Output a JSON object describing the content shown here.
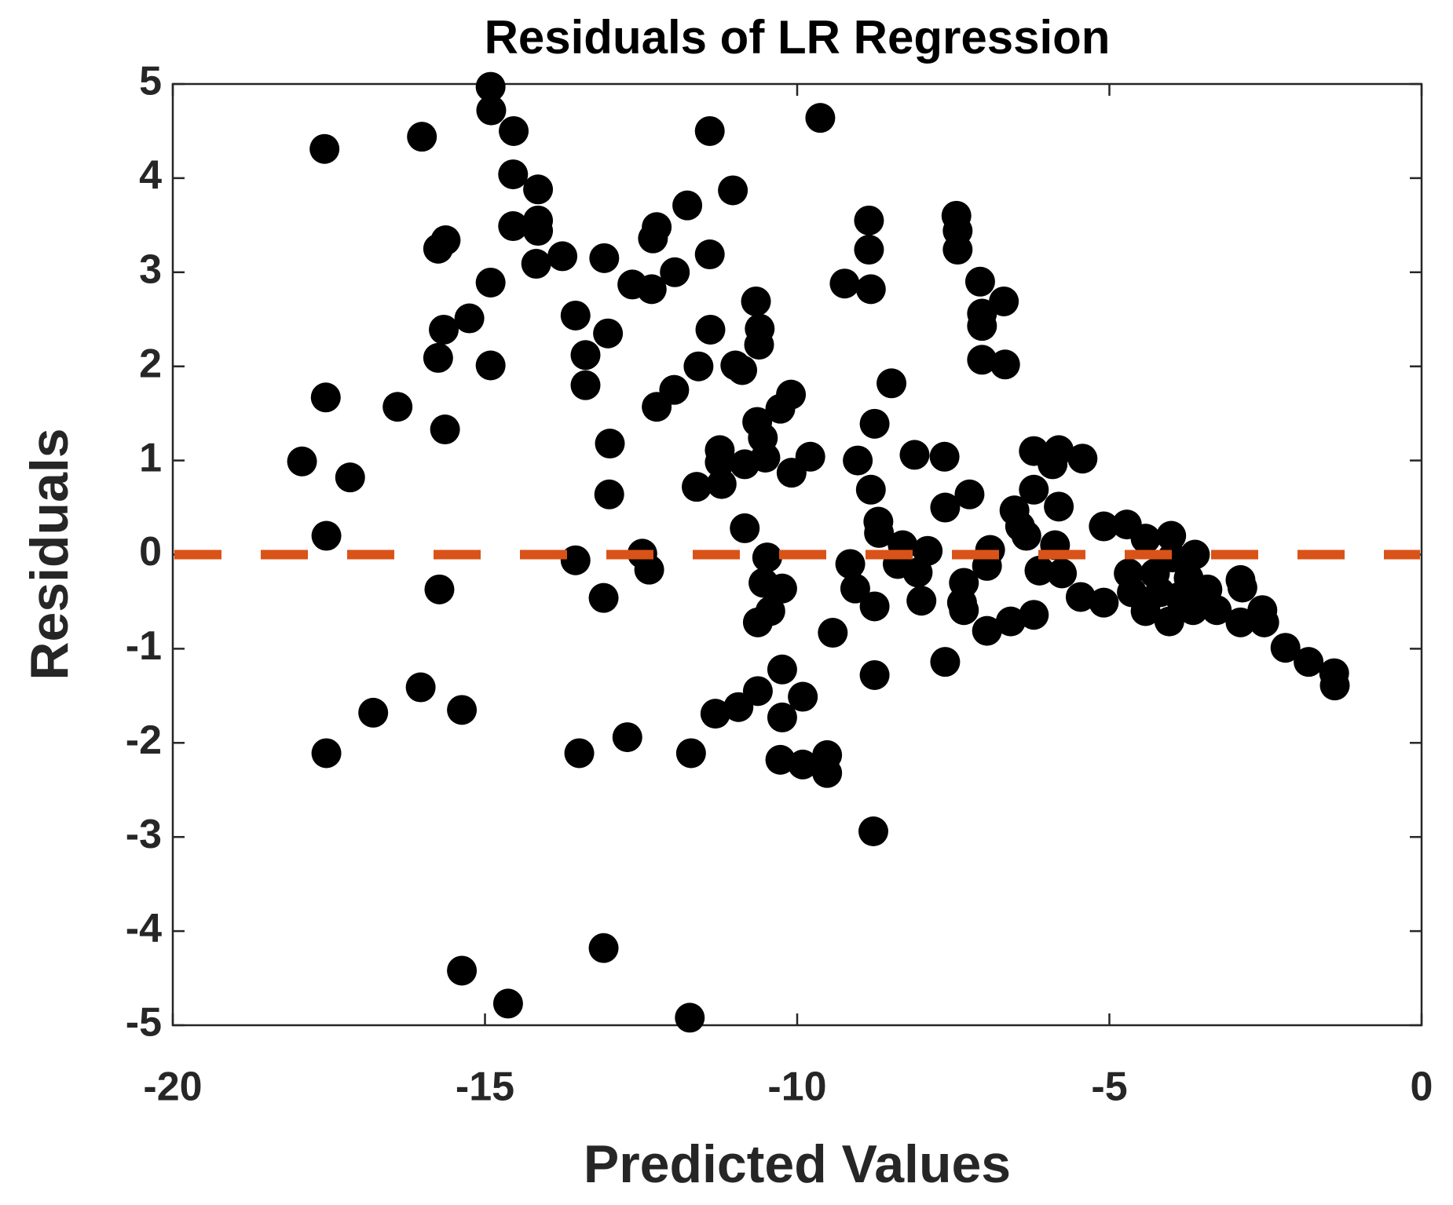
{
  "chart_data": {
    "type": "scatter",
    "title": "Residuals of LR Regression",
    "x_label": "Predicted Values",
    "y_label": "Residuals",
    "color": "#000000",
    "x": [
      -17.93,
      -17.57,
      -17.55,
      -17.54,
      -17.54,
      -17.16,
      -16.79,
      -16.4,
      -16.01,
      -16.03,
      -15.75,
      -15.63,
      -15.66,
      -15.75,
      -15.64,
      -15.73,
      -15.25,
      -15.37,
      -15.37,
      -14.91,
      -14.9,
      -14.91,
      -14.91,
      -14.54,
      -14.55,
      -14.55,
      -14.63,
      -14.15,
      -14.15,
      -14.15,
      -14.18,
      -13.76,
      -13.55,
      -13.55,
      -13.49,
      -13.39,
      -13.39,
      -13.09,
      -13.03,
      -13.0,
      -13.01,
      -13.1,
      -13.1,
      -12.72,
      -12.64,
      -12.48,
      -12.37,
      -12.33,
      -12.31,
      -12.25,
      -12.25,
      -11.97,
      -11.96,
      -11.76,
      -11.61,
      -11.7,
      -11.72,
      -11.58,
      -11.4,
      -11.4,
      -11.39,
      -11.31,
      -11.24,
      -11.24,
      -11.21,
      -11.03,
      -10.99,
      -10.94,
      -10.88,
      -10.84,
      -10.84,
      -10.66,
      -10.6,
      -10.61,
      -10.64,
      -10.63,
      -10.63,
      -10.55,
      -10.51,
      -10.48,
      -10.54,
      -10.43,
      -10.24,
      -10.24,
      -10.24,
      -10.27,
      -10.27,
      -10.1,
      -10.09,
      -9.91,
      -9.91,
      -9.79,
      -9.63,
      -9.52,
      -9.52,
      -9.43,
      -9.24,
      -9.15,
      -9.07,
      -9.03,
      -8.85,
      -8.85,
      -8.82,
      -8.82,
      -8.78,
      -8.76,
      -8.76,
      -8.76,
      -8.7,
      -8.69,
      -8.49,
      -8.39,
      -8.31,
      -8.12,
      -8.07,
      -8.01,
      -7.91,
      -7.64,
      -7.63,
      -7.63,
      -7.45,
      -7.43,
      -7.43,
      -7.33,
      -7.36,
      -7.33,
      -7.24,
      -7.07,
      -7.04,
      -7.04,
      -7.04,
      -6.96,
      -6.91,
      -6.96,
      -6.69,
      -6.67,
      -6.58,
      -6.52,
      -6.43,
      -6.33,
      -6.21,
      -6.21,
      -6.21,
      -6.12,
      -5.91,
      -5.87,
      -5.81,
      -5.81,
      -5.76,
      -5.46,
      -5.43,
      -5.09,
      -5.09,
      -4.72,
      -4.69,
      -4.64,
      -4.42,
      -4.42,
      -4.27,
      -4.19,
      -4.01,
      -4.04,
      -3.99,
      -3.88,
      -3.73,
      -3.63,
      -3.66,
      -3.43,
      -3.28,
      -2.9,
      -2.87,
      -2.9,
      -2.55,
      -2.52,
      -2.18,
      -1.81,
      -1.4,
      -1.39
    ],
    "y": [
      0.99,
      4.31,
      1.67,
      0.2,
      -2.11,
      0.82,
      -1.68,
      1.57,
      4.44,
      -1.41,
      3.25,
      3.34,
      2.39,
      2.09,
      1.33,
      -0.37,
      2.51,
      -1.65,
      -4.42,
      4.97,
      4.72,
      2.89,
      2.01,
      4.5,
      4.04,
      3.49,
      -4.77,
      3.88,
      3.55,
      3.44,
      3.09,
      3.17,
      2.54,
      -0.06,
      -2.11,
      2.12,
      1.8,
      3.15,
      2.35,
      1.18,
      0.64,
      -0.46,
      -4.18,
      -1.94,
      2.87,
      0.01,
      -0.16,
      2.82,
      3.36,
      3.48,
      1.57,
      1.75,
      3.0,
      3.71,
      0.72,
      -2.11,
      -4.92,
      2.0,
      4.5,
      3.19,
      2.39,
      -1.69,
      1.11,
      0.98,
      0.75,
      3.87,
      2.01,
      -1.62,
      1.96,
      0.96,
      0.28,
      2.69,
      2.4,
      2.23,
      1.41,
      -1.45,
      -0.72,
      1.24,
      1.03,
      -0.03,
      -0.3,
      -0.6,
      -0.36,
      -1.22,
      -1.73,
      -2.18,
      1.55,
      1.7,
      0.87,
      -1.51,
      -2.23,
      1.04,
      4.64,
      -2.13,
      -2.32,
      -0.83,
      2.88,
      -0.1,
      -0.36,
      1.0,
      3.55,
      3.24,
      2.82,
      0.69,
      -2.94,
      -1.28,
      1.39,
      -0.55,
      0.35,
      0.23,
      1.82,
      -0.1,
      0.1,
      1.06,
      -0.19,
      -0.49,
      0.04,
      1.04,
      0.5,
      -1.14,
      3.6,
      3.44,
      3.24,
      -0.3,
      -0.51,
      -0.59,
      0.64,
      2.9,
      2.56,
      2.43,
      2.07,
      -0.81,
      0.05,
      -0.12,
      2.69,
      2.02,
      -0.71,
      0.47,
      0.3,
      0.2,
      1.1,
      -0.64,
      0.69,
      -0.17,
      0.96,
      0.1,
      1.11,
      0.51,
      -0.2,
      -0.45,
      1.02,
      0.3,
      -0.51,
      0.32,
      -0.2,
      -0.4,
      0.17,
      -0.6,
      -0.2,
      -0.4,
      0.2,
      -0.71,
      -0.03,
      -0.45,
      -0.25,
      0.0,
      -0.59,
      -0.37,
      -0.59,
      -0.27,
      -0.35,
      -0.72,
      -0.59,
      -0.72,
      -0.99,
      -1.14,
      -1.26,
      -1.39
    ],
    "reference_line": {
      "y": 0,
      "color": "#d95319"
    },
    "xlim": [
      -20,
      0
    ],
    "xticks": [
      -20,
      -15,
      -10,
      -5,
      0
    ],
    "ylim": [
      -5,
      5
    ],
    "yticks": [
      -5,
      -4,
      -3,
      -2,
      -1,
      0,
      1,
      2,
      3,
      4,
      5
    ]
  }
}
